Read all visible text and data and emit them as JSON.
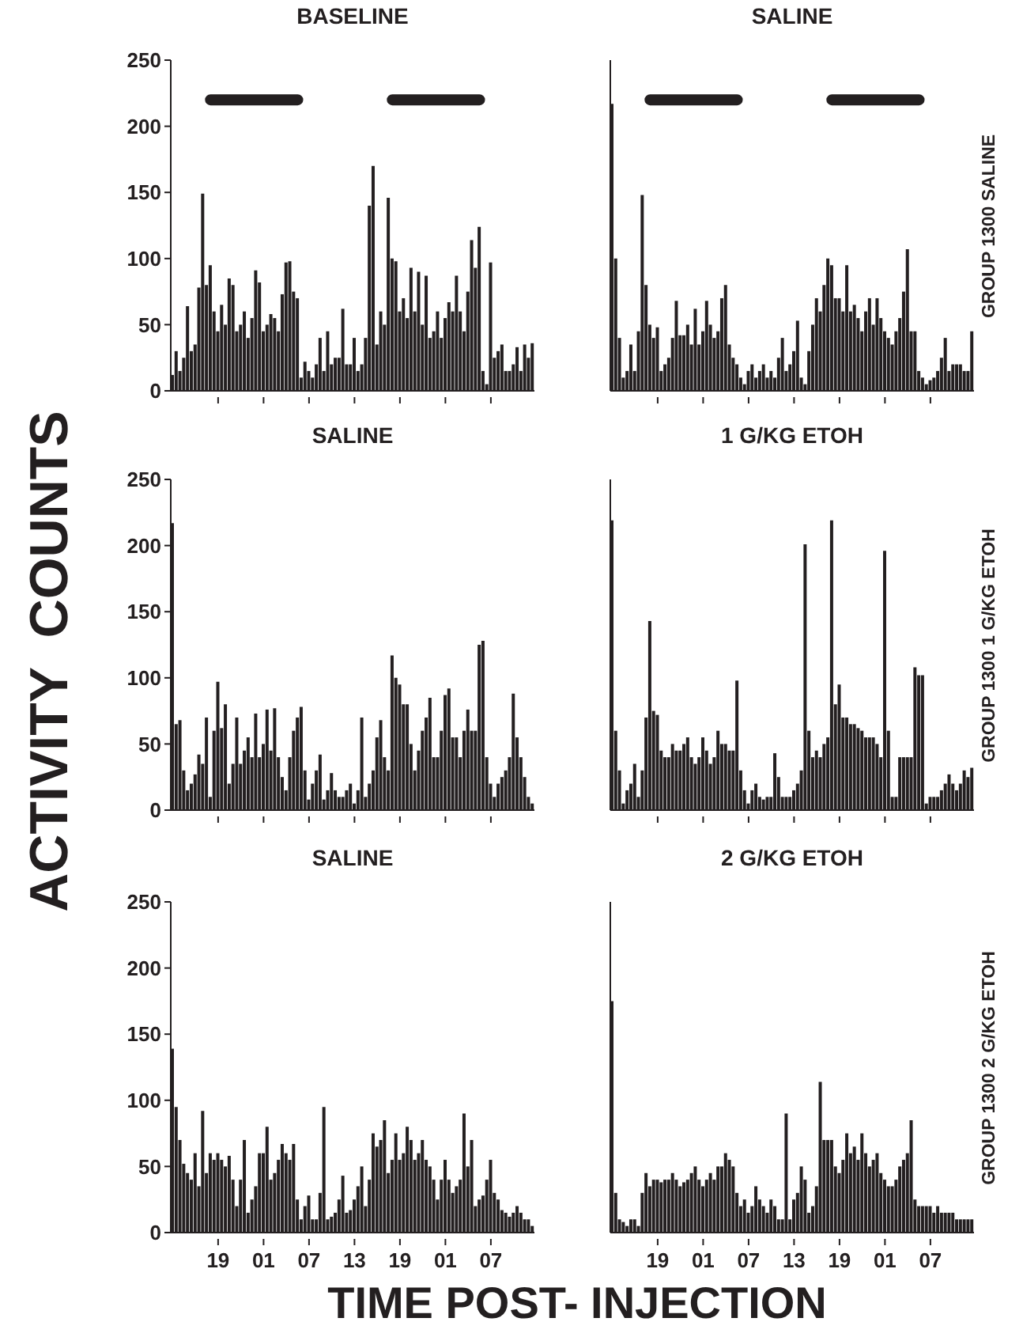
{
  "chart_data": [
    {
      "type": "bar",
      "title": "BASELINE",
      "categories": [
        null,
        null,
        null,
        null,
        null,
        null,
        null,
        null,
        null,
        null,
        null,
        null,
        "19",
        null,
        null,
        null,
        null,
        null,
        null,
        null,
        null,
        null,
        null,
        null,
        "01",
        null,
        null,
        null,
        null,
        null,
        null,
        null,
        null,
        null,
        null,
        null,
        "07",
        null,
        null,
        null,
        null,
        null,
        null,
        null,
        null,
        null,
        null,
        null,
        "13",
        null,
        null,
        null,
        null,
        null,
        null,
        null,
        null,
        null,
        null,
        null,
        "19",
        null,
        null,
        null,
        null,
        null,
        null,
        null,
        null,
        null,
        null,
        null,
        "01",
        null,
        null,
        null,
        null,
        null,
        null,
        null,
        null,
        null,
        null,
        null,
        "07",
        null,
        null,
        null,
        null,
        null,
        null,
        null,
        null,
        null,
        null,
        null
      ],
      "ylim": [
        0,
        250
      ],
      "yticks": [
        0,
        50,
        100,
        150,
        200,
        250
      ],
      "tick_labels": "y",
      "series": [
        {
          "color": "#231f20",
          "values": [
            12,
            30,
            15,
            25,
            64,
            30,
            35,
            78,
            149,
            80,
            95,
            60,
            45,
            65,
            50,
            85,
            80,
            45,
            50,
            60,
            40,
            55,
            91,
            82,
            45,
            50,
            58,
            55,
            45,
            73,
            97,
            98,
            75,
            70,
            10,
            22,
            15,
            10,
            20,
            40,
            15,
            45,
            20,
            25,
            25,
            62,
            20,
            20,
            40,
            15,
            20,
            40,
            140,
            170,
            35,
            60,
            50,
            146,
            100,
            98,
            60,
            70,
            55,
            93,
            60,
            90,
            50,
            87,
            40,
            45,
            60,
            40,
            55,
            67,
            60,
            87,
            60,
            45,
            75,
            114,
            93,
            124,
            15,
            5,
            97,
            25,
            30,
            35,
            15,
            15,
            20,
            33,
            15,
            35,
            25,
            36
          ]
        },
        {
          "type": "line",
          "color": "#231f20",
          "values": [
            null,
            null,
            null,
            null,
            null,
            null,
            null,
            null,
            null,
            null,
            220,
            220,
            220,
            220,
            220,
            220,
            220,
            220,
            220,
            220,
            220,
            220,
            220,
            220,
            220,
            220,
            220,
            220,
            220,
            220,
            220,
            220,
            220,
            220,
            null,
            null,
            null,
            null,
            null,
            null,
            null,
            null,
            null,
            null,
            null,
            null,
            null,
            null,
            null,
            null,
            null,
            null,
            null,
            null,
            null,
            null,
            null,
            null,
            220,
            220,
            220,
            220,
            220,
            220,
            220,
            220,
            220,
            220,
            220,
            220,
            220,
            220,
            220,
            220,
            220,
            220,
            220,
            220,
            220,
            220,
            220,
            220,
            null,
            null,
            null,
            null,
            null,
            null,
            null,
            null,
            null,
            null,
            null,
            null,
            null,
            null
          ]
        }
      ]
    },
    {
      "type": "bar",
      "title": "SALINE",
      "y2label": "GROUP 1300 SALINE",
      "categories": [
        null,
        null,
        null,
        null,
        null,
        null,
        null,
        null,
        null,
        null,
        null,
        null,
        "19",
        null,
        null,
        null,
        null,
        null,
        null,
        null,
        null,
        null,
        null,
        null,
        "01",
        null,
        null,
        null,
        null,
        null,
        null,
        null,
        null,
        null,
        null,
        null,
        "07",
        null,
        null,
        null,
        null,
        null,
        null,
        null,
        null,
        null,
        null,
        null,
        "13",
        null,
        null,
        null,
        null,
        null,
        null,
        null,
        null,
        null,
        null,
        null,
        "19",
        null,
        null,
        null,
        null,
        null,
        null,
        null,
        null,
        null,
        null,
        null,
        "01",
        null,
        null,
        null,
        null,
        null,
        null,
        null,
        null,
        null,
        null,
        null,
        "07",
        null,
        null,
        null,
        null,
        null,
        null,
        null,
        null,
        null,
        null,
        null
      ],
      "ylim": [
        0,
        250
      ],
      "yticks": [
        0,
        50,
        100,
        150,
        200,
        250
      ],
      "tick_labels": false,
      "series": [
        {
          "color": "#231f20",
          "values": [
            217,
            100,
            40,
            10,
            15,
            35,
            15,
            45,
            148,
            80,
            50,
            40,
            48,
            15,
            20,
            25,
            40,
            68,
            42,
            42,
            50,
            35,
            62,
            35,
            45,
            68,
            50,
            40,
            45,
            70,
            80,
            35,
            25,
            20,
            10,
            5,
            15,
            20,
            10,
            15,
            20,
            10,
            15,
            10,
            25,
            40,
            15,
            20,
            30,
            53,
            10,
            5,
            30,
            50,
            70,
            60,
            80,
            100,
            95,
            70,
            70,
            60,
            95,
            60,
            65,
            55,
            45,
            60,
            70,
            50,
            70,
            55,
            45,
            40,
            35,
            45,
            55,
            75,
            107,
            45,
            45,
            15,
            10,
            5,
            8,
            10,
            15,
            25,
            40,
            15,
            20,
            20,
            20,
            15,
            15,
            45
          ]
        },
        {
          "type": "line",
          "color": "#231f20",
          "values": [
            null,
            null,
            null,
            null,
            null,
            null,
            null,
            null,
            null,
            null,
            220,
            220,
            220,
            220,
            220,
            220,
            220,
            220,
            220,
            220,
            220,
            220,
            220,
            220,
            220,
            220,
            220,
            220,
            220,
            220,
            220,
            220,
            220,
            220,
            null,
            null,
            null,
            null,
            null,
            null,
            null,
            null,
            null,
            null,
            null,
            null,
            null,
            null,
            null,
            null,
            null,
            null,
            null,
            null,
            null,
            null,
            null,
            null,
            220,
            220,
            220,
            220,
            220,
            220,
            220,
            220,
            220,
            220,
            220,
            220,
            220,
            220,
            220,
            220,
            220,
            220,
            220,
            220,
            220,
            220,
            220,
            220,
            null,
            null,
            null,
            null,
            null,
            null,
            null,
            null,
            null,
            null,
            null,
            null,
            null,
            null
          ]
        }
      ]
    },
    {
      "type": "bar",
      "title": "SALINE",
      "ylabel": "ACTIVITY  COUNTS",
      "categories": [
        null,
        null,
        null,
        null,
        null,
        null,
        null,
        null,
        null,
        null,
        null,
        null,
        "19",
        null,
        null,
        null,
        null,
        null,
        null,
        null,
        null,
        null,
        null,
        null,
        "01",
        null,
        null,
        null,
        null,
        null,
        null,
        null,
        null,
        null,
        null,
        null,
        "07",
        null,
        null,
        null,
        null,
        null,
        null,
        null,
        null,
        null,
        null,
        null,
        "13",
        null,
        null,
        null,
        null,
        null,
        null,
        null,
        null,
        null,
        null,
        null,
        "19",
        null,
        null,
        null,
        null,
        null,
        null,
        null,
        null,
        null,
        null,
        null,
        "01",
        null,
        null,
        null,
        null,
        null,
        null,
        null,
        null,
        null,
        null,
        null,
        "07",
        null,
        null,
        null,
        null,
        null,
        null,
        null,
        null,
        null,
        null,
        null
      ],
      "ylim": [
        0,
        250
      ],
      "yticks": [
        0,
        50,
        100,
        150,
        200,
        250
      ],
      "tick_labels": "y",
      "series": [
        {
          "color": "#231f20",
          "values": [
            217,
            65,
            68,
            30,
            15,
            20,
            27,
            42,
            35,
            70,
            10,
            60,
            97,
            62,
            80,
            20,
            35,
            70,
            35,
            45,
            55,
            40,
            73,
            40,
            50,
            76,
            45,
            77,
            40,
            25,
            15,
            40,
            60,
            70,
            78,
            30,
            8,
            20,
            30,
            42,
            8,
            15,
            28,
            15,
            10,
            10,
            15,
            20,
            5,
            15,
            70,
            10,
            20,
            30,
            55,
            68,
            40,
            30,
            117,
            100,
            95,
            80,
            80,
            50,
            30,
            45,
            60,
            70,
            85,
            40,
            40,
            60,
            87,
            92,
            55,
            55,
            40,
            60,
            76,
            60,
            60,
            125,
            128,
            40,
            20,
            10,
            20,
            25,
            30,
            40,
            88,
            55,
            40,
            25,
            10,
            5
          ]
        }
      ]
    },
    {
      "type": "bar",
      "title": "1 G/KG ETOH",
      "y2label": "GROUP 1300 1 G/KG ETOH",
      "categories": [
        null,
        null,
        null,
        null,
        null,
        null,
        null,
        null,
        null,
        null,
        null,
        null,
        "19",
        null,
        null,
        null,
        null,
        null,
        null,
        null,
        null,
        null,
        null,
        null,
        "01",
        null,
        null,
        null,
        null,
        null,
        null,
        null,
        null,
        null,
        null,
        null,
        "07",
        null,
        null,
        null,
        null,
        null,
        null,
        null,
        null,
        null,
        null,
        null,
        "13",
        null,
        null,
        null,
        null,
        null,
        null,
        null,
        null,
        null,
        null,
        null,
        "19",
        null,
        null,
        null,
        null,
        null,
        null,
        null,
        null,
        null,
        null,
        null,
        "01",
        null,
        null,
        null,
        null,
        null,
        null,
        null,
        null,
        null,
        null,
        null,
        "07",
        null,
        null,
        null,
        null,
        null,
        null,
        null,
        null,
        null,
        null,
        null
      ],
      "ylim": [
        0,
        250
      ],
      "yticks": [
        0,
        50,
        100,
        150,
        200,
        250
      ],
      "tick_labels": false,
      "series": [
        {
          "color": "#231f20",
          "values": [
            219,
            60,
            30,
            5,
            15,
            20,
            35,
            10,
            30,
            70,
            143,
            75,
            72,
            45,
            40,
            40,
            50,
            45,
            45,
            50,
            55,
            40,
            35,
            40,
            55,
            45,
            35,
            40,
            60,
            50,
            50,
            45,
            45,
            98,
            30,
            15,
            5,
            15,
            20,
            10,
            8,
            10,
            10,
            43,
            25,
            10,
            10,
            10,
            15,
            20,
            30,
            201,
            60,
            40,
            45,
            40,
            50,
            55,
            219,
            80,
            95,
            70,
            70,
            65,
            65,
            62,
            60,
            55,
            55,
            55,
            50,
            40,
            196,
            60,
            10,
            10,
            40,
            40,
            40,
            40,
            108,
            102,
            102,
            5,
            10,
            10,
            10,
            15,
            20,
            27,
            20,
            15,
            20,
            30,
            25,
            32
          ]
        }
      ]
    },
    {
      "type": "bar",
      "title": "SALINE",
      "xlabel": "TIME POST- INJECTION",
      "categories": [
        null,
        null,
        null,
        null,
        null,
        null,
        null,
        null,
        null,
        null,
        null,
        null,
        "19",
        null,
        null,
        null,
        null,
        null,
        null,
        null,
        null,
        null,
        null,
        null,
        "01",
        null,
        null,
        null,
        null,
        null,
        null,
        null,
        null,
        null,
        null,
        null,
        "07",
        null,
        null,
        null,
        null,
        null,
        null,
        null,
        null,
        null,
        null,
        null,
        "13",
        null,
        null,
        null,
        null,
        null,
        null,
        null,
        null,
        null,
        null,
        null,
        "19",
        null,
        null,
        null,
        null,
        null,
        null,
        null,
        null,
        null,
        null,
        null,
        "01",
        null,
        null,
        null,
        null,
        null,
        null,
        null,
        null,
        null,
        null,
        null,
        "07",
        null,
        null,
        null,
        null,
        null,
        null,
        null,
        null,
        null,
        null,
        null
      ],
      "ylim": [
        0,
        250
      ],
      "yticks": [
        0,
        50,
        100,
        150,
        200,
        250
      ],
      "series": [
        {
          "color": "#231f20",
          "values": [
            139,
            95,
            70,
            52,
            45,
            40,
            60,
            35,
            92,
            45,
            60,
            55,
            60,
            55,
            50,
            58,
            40,
            20,
            40,
            70,
            15,
            25,
            35,
            60,
            60,
            80,
            40,
            45,
            55,
            67,
            60,
            55,
            67,
            25,
            10,
            20,
            28,
            10,
            10,
            30,
            95,
            10,
            12,
            15,
            25,
            43,
            15,
            17,
            25,
            35,
            50,
            20,
            40,
            75,
            65,
            70,
            85,
            45,
            55,
            75,
            55,
            60,
            80,
            70,
            55,
            60,
            70,
            55,
            50,
            40,
            25,
            40,
            55,
            40,
            30,
            35,
            40,
            90,
            50,
            70,
            20,
            25,
            28,
            40,
            55,
            30,
            25,
            17,
            15,
            12,
            15,
            20,
            15,
            10,
            10,
            5
          ]
        }
      ]
    },
    {
      "type": "bar",
      "title": "2 G/KG ETOH",
      "y2label": "GROUP 1300 2 G/KG ETOH",
      "categories": [
        null,
        null,
        null,
        null,
        null,
        null,
        null,
        null,
        null,
        null,
        null,
        null,
        "19",
        null,
        null,
        null,
        null,
        null,
        null,
        null,
        null,
        null,
        null,
        null,
        "01",
        null,
        null,
        null,
        null,
        null,
        null,
        null,
        null,
        null,
        null,
        null,
        "07",
        null,
        null,
        null,
        null,
        null,
        null,
        null,
        null,
        null,
        null,
        null,
        "13",
        null,
        null,
        null,
        null,
        null,
        null,
        null,
        null,
        null,
        null,
        null,
        "19",
        null,
        null,
        null,
        null,
        null,
        null,
        null,
        null,
        null,
        null,
        null,
        "01",
        null,
        null,
        null,
        null,
        null,
        null,
        null,
        null,
        null,
        null,
        null,
        "07",
        null,
        null,
        null,
        null,
        null,
        null,
        null,
        null,
        null,
        null,
        null
      ],
      "ylim": [
        0,
        250
      ],
      "yticks": [
        0,
        50,
        100,
        150,
        200,
        250
      ],
      "tick_labels": "x",
      "series": [
        {
          "color": "#231f20",
          "values": [
            175,
            30,
            10,
            8,
            5,
            10,
            10,
            5,
            30,
            45,
            35,
            40,
            40,
            38,
            40,
            40,
            45,
            40,
            35,
            38,
            40,
            45,
            50,
            40,
            35,
            40,
            45,
            40,
            50,
            50,
            60,
            55,
            50,
            30,
            20,
            25,
            15,
            20,
            35,
            25,
            20,
            15,
            25,
            20,
            10,
            10,
            90,
            10,
            25,
            30,
            50,
            40,
            15,
            20,
            35,
            114,
            70,
            70,
            70,
            50,
            45,
            55,
            75,
            60,
            65,
            55,
            75,
            60,
            50,
            55,
            60,
            45,
            40,
            35,
            35,
            40,
            50,
            55,
            60,
            85,
            25,
            20,
            20,
            20,
            20,
            15,
            20,
            15,
            15,
            15,
            15,
            10,
            10,
            10,
            10,
            10
          ]
        }
      ]
    }
  ]
}
